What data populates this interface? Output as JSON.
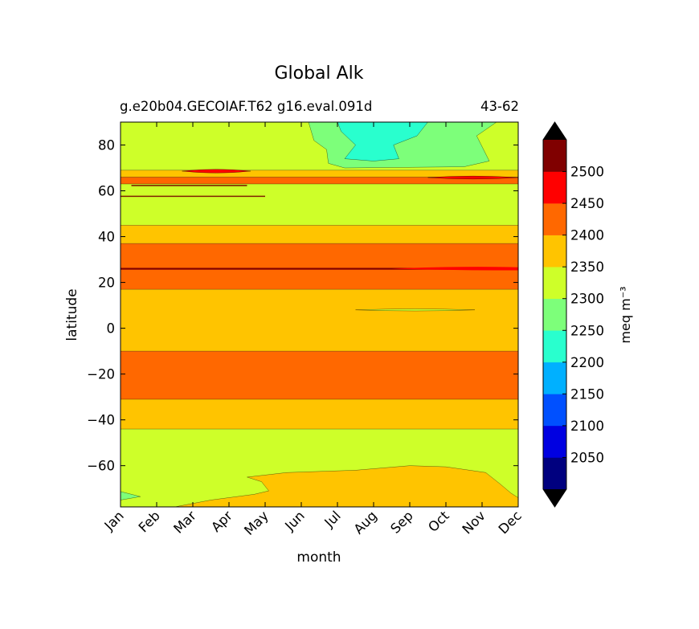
{
  "chart_data": {
    "type": "filled-contour",
    "title": "Global Alk",
    "subtitle_left": "g.e20b04.GECOIAF.T62 g16.eval.091d",
    "subtitle_right": "43-62",
    "xlabel": "month",
    "ylabel": "latitude",
    "x_categories": [
      "Jan",
      "Feb",
      "Mar",
      "Apr",
      "May",
      "Jun",
      "Jul",
      "Aug",
      "Sep",
      "Oct",
      "Nov",
      "Dec"
    ],
    "ylim": [
      -78,
      90
    ],
    "y_ticks": [
      80,
      60,
      40,
      20,
      0,
      -20,
      -40,
      -60
    ],
    "y_tick_labels": [
      "80",
      "60",
      "40",
      "20",
      "0",
      "−20",
      "−40",
      "−60"
    ],
    "colorbar": {
      "label": "meq m⁻³",
      "levels": [
        2000,
        2050,
        2100,
        2150,
        2200,
        2250,
        2300,
        2350,
        2400,
        2450,
        2500,
        2550
      ],
      "tick_values": [
        2050,
        2100,
        2150,
        2200,
        2250,
        2300,
        2350,
        2400,
        2450,
        2500
      ],
      "tick_labels": [
        "2050",
        "2100",
        "2150",
        "2200",
        "2250",
        "2300",
        "2350",
        "2400",
        "2450",
        "2500"
      ],
      "colors": [
        "#00007f",
        "#0000e1",
        "#0050ff",
        "#00b0ff",
        "#29ffce",
        "#7dff7a",
        "#ceff29",
        "#ffc400",
        "#ff6800",
        "#ff0000",
        "#800000"
      ],
      "under_color": "#000000",
      "over_color": "#000000"
    },
    "bands": [
      {
        "lat_min": 69,
        "lat_max": 90,
        "value": 2325
      },
      {
        "lat_min": 66,
        "lat_max": 69,
        "value": 2375
      },
      {
        "lat_min": 63,
        "lat_max": 66,
        "value": 2425
      },
      {
        "lat_min": 45,
        "lat_max": 63,
        "value": 2325
      },
      {
        "lat_min": 37,
        "lat_max": 45,
        "value": 2375
      },
      {
        "lat_min": 17,
        "lat_max": 37,
        "value": 2425
      },
      {
        "lat_min": -10,
        "lat_max": 17,
        "value": 2375
      },
      {
        "lat_min": -31,
        "lat_max": -10,
        "value": 2425
      },
      {
        "lat_min": -44,
        "lat_max": -31,
        "value": 2375
      },
      {
        "lat_min": -78,
        "lat_max": -44,
        "value": 2325
      }
    ],
    "features": [
      {
        "name": "arctic-low-alk-region",
        "months": [
          5.2,
          10.4
        ],
        "lat_range": [
          70,
          90
        ],
        "value": 2275
      },
      {
        "name": "arctic-core-region",
        "months": [
          6.0,
          8.5
        ],
        "lat_range": [
          73,
          90
        ],
        "value": 2225
      },
      {
        "name": "thin-2450-line-26N",
        "months": [
          0,
          11
        ],
        "lat": 26,
        "value": 2475
      },
      {
        "name": "southern-ocean-2350-patch",
        "months": [
          1.5,
          11
        ],
        "lat_range": [
          -78,
          -60
        ],
        "value": 2375
      },
      {
        "name": "equatorial-2300-sliver",
        "months": [
          6.5,
          9.8
        ],
        "lat": 8,
        "value": 2325
      }
    ]
  }
}
